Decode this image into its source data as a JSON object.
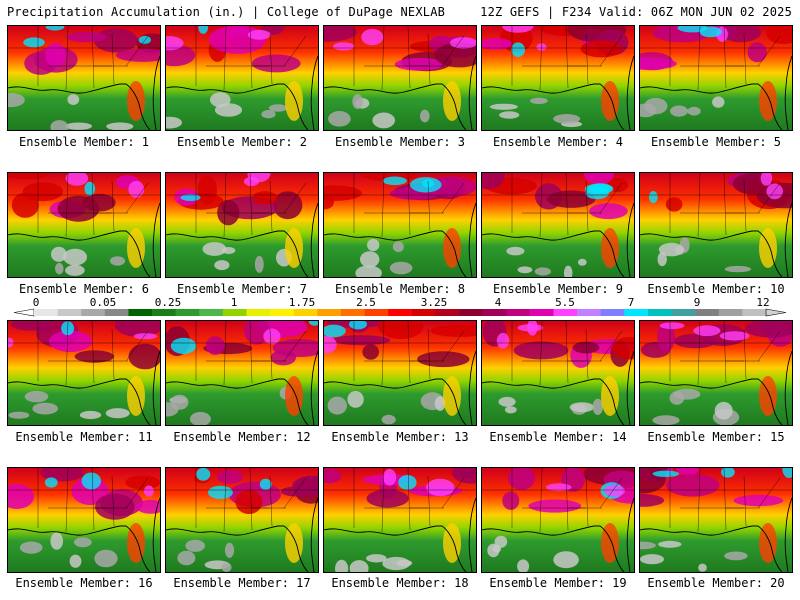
{
  "header": {
    "title": "Precipitation Accumulation (in.) | College of DuPage NEXLAB",
    "run_info": "12Z GEFS | F234 Valid: 06Z MON JUN 02 2025"
  },
  "colorbar": {
    "tick_labels": [
      "0",
      "0.05",
      "0.25",
      "1",
      "1.75",
      "2.5",
      "3.25",
      "4",
      "5.5",
      "7",
      "9",
      "12"
    ],
    "colors": [
      "#e6e6e6",
      "#c8c8c8",
      "#a8a8a8",
      "#888888",
      "#006400",
      "#1a7f1a",
      "#2e9b2e",
      "#4cb84c",
      "#8fd400",
      "#e6f000",
      "#fff000",
      "#ffd000",
      "#ffa000",
      "#ff7000",
      "#ff4000",
      "#ff0000",
      "#d60000",
      "#b0001e",
      "#8c0032",
      "#a0005a",
      "#c00080",
      "#e000b0",
      "#ff40ff",
      "#c080ff",
      "#8080ff",
      "#00e6ff",
      "#00c0c0",
      "#40a0a0",
      "#808080",
      "#a0a0a0",
      "#c0c0c0"
    ]
  },
  "members": [
    {
      "label": "Ensemble Member: 1"
    },
    {
      "label": "Ensemble Member: 2"
    },
    {
      "label": "Ensemble Member: 3"
    },
    {
      "label": "Ensemble Member: 4"
    },
    {
      "label": "Ensemble Member: 5"
    },
    {
      "label": "Ensemble Member: 6"
    },
    {
      "label": "Ensemble Member: 7"
    },
    {
      "label": "Ensemble Member: 8"
    },
    {
      "label": "Ensemble Member: 9"
    },
    {
      "label": "Ensemble Member: 10"
    },
    {
      "label": "Ensemble Member: 11"
    },
    {
      "label": "Ensemble Member: 12"
    },
    {
      "label": "Ensemble Member: 13"
    },
    {
      "label": "Ensemble Member: 14"
    },
    {
      "label": "Ensemble Member: 15"
    },
    {
      "label": "Ensemble Member: 16"
    },
    {
      "label": "Ensemble Member: 17"
    },
    {
      "label": "Ensemble Member: 18"
    },
    {
      "label": "Ensemble Member: 19"
    },
    {
      "label": "Ensemble Member: 20"
    }
  ]
}
